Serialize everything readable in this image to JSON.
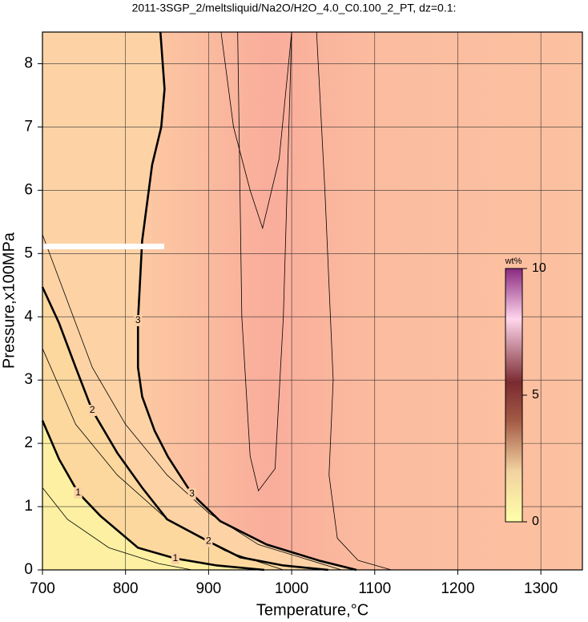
{
  "chart_data": {
    "type": "contour",
    "title": "2011-3SGP_2/meltsliquid/Na2O/H2O_4.0_C0.100_2_PT, dz=0.1:",
    "x_label": "Temperature,°C",
    "y_label": "Pressure,x100MPa",
    "xlim": [
      700,
      1350
    ],
    "ylim": [
      0,
      8.5
    ],
    "xticks": [
      700,
      800,
      900,
      1000,
      1100,
      1200,
      1300
    ],
    "yticks": [
      0,
      1,
      2,
      3,
      4,
      5,
      6,
      7,
      8
    ],
    "grid": true,
    "contours": [
      {
        "level": 1,
        "major": true,
        "x": [
          700,
          720,
          743,
          770,
          815,
          860,
          910,
          967
        ],
        "y": [
          2.36,
          1.75,
          1.22,
          0.85,
          0.35,
          0.18,
          0.07,
          0
        ]
      },
      {
        "level": 2,
        "major": true,
        "x": [
          700,
          720,
          740,
          760,
          790,
          820,
          850,
          900,
          938,
          990,
          1044
        ],
        "y": [
          4.47,
          3.9,
          3.2,
          2.52,
          1.85,
          1.3,
          0.8,
          0.45,
          0.2,
          0.07,
          0
        ]
      },
      {
        "level": 3,
        "major": true,
        "x": [
          842,
          847,
          843,
          832,
          820,
          815,
          815,
          820,
          835,
          851,
          880,
          914,
          970,
          1035,
          1078
        ],
        "y": [
          8.5,
          7.6,
          7.0,
          6.4,
          5.2,
          3.94,
          3.2,
          2.74,
          2.2,
          1.79,
          1.2,
          0.77,
          0.4,
          0.14,
          0
        ]
      },
      {
        "level": 0.5,
        "major": false,
        "x": [
          700,
          730,
          780,
          840,
          880
        ],
        "y": [
          1.3,
          0.8,
          0.35,
          0.1,
          0
        ]
      },
      {
        "level": 1.5,
        "major": false,
        "x": [
          700,
          740,
          790,
          850,
          920,
          990
        ],
        "y": [
          3.5,
          2.3,
          1.5,
          0.8,
          0.3,
          0
        ]
      },
      {
        "level": 2.5,
        "major": false,
        "x": [
          700,
          760,
          800,
          850,
          900,
          960,
          1060
        ],
        "y": [
          5.3,
          3.2,
          2.3,
          1.5,
          0.9,
          0.4,
          0
        ]
      },
      {
        "level": 3.4,
        "major": false,
        "x": [
          915,
          930,
          950,
          965,
          985,
          1000
        ],
        "y": [
          8.5,
          7.0,
          6.0,
          5.4,
          6.5,
          8.5
        ]
      },
      {
        "level": 3.3,
        "major": false,
        "x": [
          935,
          940,
          950,
          960,
          980,
          990,
          1000
        ],
        "y": [
          8.5,
          4,
          1.8,
          1.25,
          1.6,
          4,
          8.5
        ]
      },
      {
        "level": 3.2,
        "major": false,
        "x": [
          1030,
          1040,
          1050,
          1045,
          1055,
          1080,
          1120
        ],
        "y": [
          8.5,
          6,
          3,
          1.5,
          0.5,
          0.15,
          0
        ]
      }
    ],
    "colorbar": {
      "label": "wt%",
      "lim": [
        0,
        10
      ],
      "ticks": [
        0,
        5,
        10
      ]
    }
  }
}
